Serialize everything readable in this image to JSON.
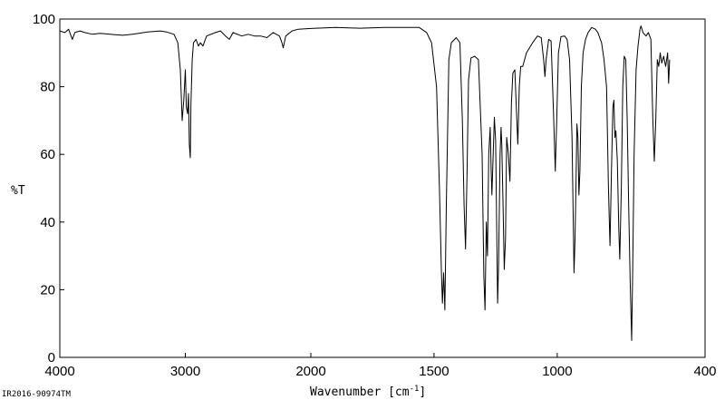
{
  "chart_data": {
    "type": "line",
    "xlabel": "Wavenumber [cm",
    "xlabel_superscript": "-1",
    "xlabel_close": "]",
    "ylabel": "%T",
    "xlim": [
      4000,
      400
    ],
    "ylim": [
      0,
      100
    ],
    "x_ticks": [
      4000,
      3000,
      2000,
      1500,
      1000,
      400
    ],
    "x_tick_labels": [
      "4000",
      "3000",
      "2000",
      "1500",
      "1000",
      "400"
    ],
    "y_ticks": [
      0,
      20,
      40,
      60,
      80,
      100
    ],
    "y_tick_labels": [
      "0",
      "20",
      "40",
      "60",
      "80",
      "100"
    ],
    "x_axis_scale": "piecewise-linear (4000-2000 compressed, 2000-400 expanded)",
    "grid": false,
    "line_color": "#000000",
    "sample_id": "IR2016-90974TM",
    "series": [
      {
        "points": [
          [
            4000,
            96.5
          ],
          [
            3960,
            96
          ],
          [
            3930,
            97
          ],
          [
            3900,
            94
          ],
          [
            3880,
            96
          ],
          [
            3840,
            96.5
          ],
          [
            3800,
            96
          ],
          [
            3740,
            95.5
          ],
          [
            3680,
            95.8
          ],
          [
            3600,
            95.5
          ],
          [
            3500,
            95.2
          ],
          [
            3420,
            95.5
          ],
          [
            3300,
            96.2
          ],
          [
            3200,
            96.5
          ],
          [
            3150,
            96.2
          ],
          [
            3090,
            95.5
          ],
          [
            3060,
            93
          ],
          [
            3040,
            85
          ],
          [
            3025,
            70
          ],
          [
            3012,
            76
          ],
          [
            3000,
            85
          ],
          [
            2992,
            74
          ],
          [
            2982,
            72
          ],
          [
            2975,
            78
          ],
          [
            2968,
            63
          ],
          [
            2960,
            59
          ],
          [
            2955,
            75
          ],
          [
            2945,
            88
          ],
          [
            2935,
            93
          ],
          [
            2915,
            94
          ],
          [
            2895,
            92
          ],
          [
            2880,
            93
          ],
          [
            2860,
            92
          ],
          [
            2830,
            95
          ],
          [
            2760,
            96
          ],
          [
            2720,
            96.5
          ],
          [
            2680,
            95
          ],
          [
            2650,
            94
          ],
          [
            2620,
            96
          ],
          [
            2550,
            95
          ],
          [
            2500,
            95.5
          ],
          [
            2450,
            95
          ],
          [
            2400,
            95
          ],
          [
            2350,
            94.5
          ],
          [
            2300,
            96
          ],
          [
            2250,
            95
          ],
          [
            2230,
            93
          ],
          [
            2220,
            91.5
          ],
          [
            2200,
            95
          ],
          [
            2150,
            96.5
          ],
          [
            2100,
            97
          ],
          [
            2000,
            97.2
          ],
          [
            1900,
            97.5
          ],
          [
            1800,
            97.3
          ],
          [
            1700,
            97.5
          ],
          [
            1600,
            97.5
          ],
          [
            1560,
            97.5
          ],
          [
            1530,
            96
          ],
          [
            1510,
            93
          ],
          [
            1490,
            80
          ],
          [
            1478,
            50
          ],
          [
            1470,
            25
          ],
          [
            1466,
            16
          ],
          [
            1461,
            25
          ],
          [
            1456,
            14
          ],
          [
            1450,
            45
          ],
          [
            1440,
            88
          ],
          [
            1430,
            93
          ],
          [
            1410,
            94.5
          ],
          [
            1395,
            93
          ],
          [
            1385,
            70
          ],
          [
            1378,
            45
          ],
          [
            1372,
            32
          ],
          [
            1366,
            55
          ],
          [
            1360,
            82
          ],
          [
            1350,
            88.5
          ],
          [
            1335,
            89
          ],
          [
            1320,
            88
          ],
          [
            1305,
            60
          ],
          [
            1298,
            24
          ],
          [
            1293,
            14
          ],
          [
            1288,
            40
          ],
          [
            1283,
            30
          ],
          [
            1278,
            60
          ],
          [
            1272,
            68
          ],
          [
            1268,
            55
          ],
          [
            1265,
            48
          ],
          [
            1260,
            60
          ],
          [
            1255,
            71
          ],
          [
            1250,
            64
          ],
          [
            1246,
            40
          ],
          [
            1242,
            16
          ],
          [
            1238,
            28
          ],
          [
            1232,
            60
          ],
          [
            1228,
            68
          ],
          [
            1225,
            63
          ],
          [
            1220,
            45
          ],
          [
            1215,
            26
          ],
          [
            1210,
            35
          ],
          [
            1205,
            65
          ],
          [
            1198,
            60
          ],
          [
            1192,
            52
          ],
          [
            1186,
            75
          ],
          [
            1180,
            84
          ],
          [
            1172,
            85
          ],
          [
            1165,
            72
          ],
          [
            1160,
            63
          ],
          [
            1154,
            80
          ],
          [
            1148,
            86
          ],
          [
            1140,
            86
          ],
          [
            1125,
            90
          ],
          [
            1100,
            93
          ],
          [
            1080,
            95
          ],
          [
            1065,
            94.5
          ],
          [
            1055,
            88
          ],
          [
            1050,
            83
          ],
          [
            1045,
            88
          ],
          [
            1035,
            94
          ],
          [
            1025,
            93.5
          ],
          [
            1015,
            72
          ],
          [
            1008,
            55
          ],
          [
            1002,
            70
          ],
          [
            995,
            90
          ],
          [
            985,
            94.8
          ],
          [
            970,
            95
          ],
          [
            960,
            94
          ],
          [
            950,
            88
          ],
          [
            940,
            65
          ],
          [
            932,
            25
          ],
          [
            928,
            35
          ],
          [
            924,
            50
          ],
          [
            920,
            69
          ],
          [
            916,
            65
          ],
          [
            912,
            48
          ],
          [
            908,
            55
          ],
          [
            902,
            80
          ],
          [
            895,
            90
          ],
          [
            885,
            94
          ],
          [
            875,
            96
          ],
          [
            860,
            97.5
          ],
          [
            845,
            97
          ],
          [
            835,
            96
          ],
          [
            820,
            93
          ],
          [
            810,
            88
          ],
          [
            800,
            80
          ],
          [
            792,
            50
          ],
          [
            786,
            33
          ],
          [
            780,
            55
          ],
          [
            774,
            74
          ],
          [
            770,
            76
          ],
          [
            766,
            65
          ],
          [
            762,
            67
          ],
          [
            756,
            58
          ],
          [
            750,
            38
          ],
          [
            746,
            29
          ],
          [
            740,
            50
          ],
          [
            734,
            80
          ],
          [
            728,
            89
          ],
          [
            722,
            88
          ],
          [
            716,
            70
          ],
          [
            710,
            45
          ],
          [
            704,
            22
          ],
          [
            698,
            5
          ],
          [
            694,
            25
          ],
          [
            688,
            60
          ],
          [
            680,
            85
          ],
          [
            672,
            92
          ],
          [
            664,
            97
          ],
          [
            660,
            98
          ],
          [
            652,
            96
          ],
          [
            640,
            95
          ],
          [
            630,
            96
          ],
          [
            620,
            94
          ],
          [
            612,
            70
          ],
          [
            606,
            58
          ],
          [
            600,
            70
          ],
          [
            594,
            88
          ],
          [
            588,
            86
          ],
          [
            582,
            90
          ],
          [
            576,
            87
          ],
          [
            568,
            89
          ],
          [
            560,
            86
          ],
          [
            552,
            90
          ],
          [
            548,
            81
          ],
          [
            544,
            88
          ]
        ]
      }
    ]
  }
}
